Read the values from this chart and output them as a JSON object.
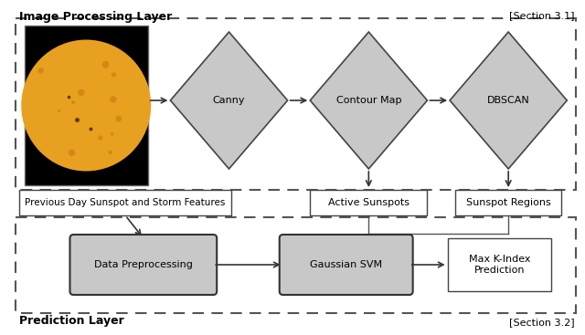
{
  "fig_width": 6.4,
  "fig_height": 3.67,
  "dpi": 100,
  "bg_color": "#ffffff",
  "diamond_fill": "#c8c8c8",
  "diamond_edge": "#444444",
  "rounded_fill": "#c8c8c8",
  "rounded_edge": "#333333",
  "rect_fill": "#ffffff",
  "rect_edge": "#444444",
  "dashed_edge": "#555555",
  "top_box_label": "Image Processing Layer",
  "top_box_section": "[Section 3.1]",
  "bottom_box_label": "Prediction Layer",
  "bottom_box_section": "[Section 3.2]",
  "diamond_labels": [
    "Canny",
    "Contour Map",
    "DBSCAN"
  ],
  "bottom_rect_labels": [
    "Previous Day Sunspot and Storm Features",
    "Active Sunspots",
    "Sunspot Regions"
  ],
  "prediction_labels": [
    "Data Preprocessing",
    "Gaussian SVM",
    "Max K-Index\nPrediction"
  ],
  "font_size_title": 9,
  "font_size_box": 8,
  "font_size_section": 8,
  "sun_color": "#e8a020",
  "sun_bg": "#000000",
  "arrow_color": "#333333",
  "line_color": "#555555"
}
